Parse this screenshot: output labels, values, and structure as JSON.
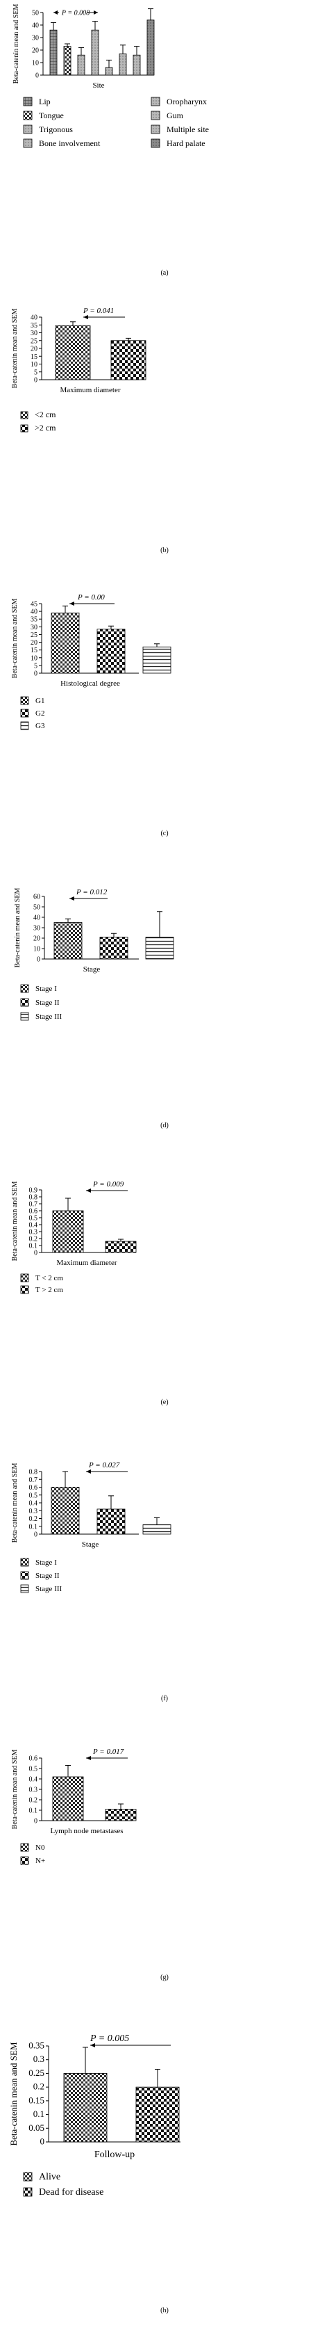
{
  "chart_data": [
    {
      "type": "bar",
      "panel_label": "(a)",
      "ylabel": "Beta-catenin mean and SEM",
      "xlabel": "Site",
      "ylim": [
        0,
        50
      ],
      "yticks": [
        "0",
        "10",
        "20",
        "30",
        "40",
        "50"
      ],
      "categories": [
        "Lip",
        "Tongue",
        "Trigonous",
        "Bone involvement",
        "Oropharynx",
        "Gum",
        "Multiple site",
        "Hard palate"
      ],
      "values": [
        36,
        23,
        16,
        36,
        6,
        17,
        16,
        44
      ],
      "errors": [
        6,
        2,
        6,
        7,
        6,
        7,
        7,
        9
      ],
      "pattern_names": [
        "grid-dense",
        "checker-fine",
        "gray-light",
        "gray-light",
        "gray-light",
        "gray-light",
        "gray-light",
        "gray-medium"
      ],
      "p_text": "P = 0.008"
    },
    {
      "type": "bar",
      "panel_label": "(b)",
      "ylabel": "Beta-catenin mean and SEM",
      "xlabel": "Maximum diameter",
      "ylim": [
        0,
        40
      ],
      "yticks": [
        "0",
        "5",
        "10",
        "15",
        "20",
        "25",
        "30",
        "35",
        "40"
      ],
      "categories": [
        "<2 cm",
        ">2 cm"
      ],
      "values": [
        34.5,
        25
      ],
      "errors": [
        2.5,
        1.5
      ],
      "pattern_names": [
        "checker-fine",
        "checker-coarse"
      ],
      "p_text": "P = 0.041"
    },
    {
      "type": "bar",
      "panel_label": "(c)",
      "ylabel": "Beta-catenin mean and SEM",
      "xlabel": "Histological degree",
      "ylim": [
        0,
        45
      ],
      "yticks": [
        "0",
        "5",
        "10",
        "15",
        "20",
        "25",
        "30",
        "35",
        "40",
        "45"
      ],
      "categories": [
        "G1",
        "G2",
        "G3"
      ],
      "values": [
        39,
        28.5,
        17
      ],
      "errors": [
        4.5,
        2,
        2
      ],
      "pattern_names": [
        "checker-fine",
        "checker-coarse",
        "horizontal-lines"
      ],
      "p_text": "P = 0.00"
    },
    {
      "type": "bar",
      "panel_label": "(d)",
      "ylabel": "Beta-catenin mean and SEM",
      "xlabel": "Stage",
      "ylim": [
        0,
        60
      ],
      "yticks": [
        "0",
        "10",
        "20",
        "30",
        "40",
        "50",
        "60"
      ],
      "categories": [
        "Stage I",
        "Stage II",
        "Stage III"
      ],
      "values": [
        35,
        21,
        21
      ],
      "errors": [
        3.5,
        3.5,
        24.5
      ],
      "pattern_names": [
        "checker-fine",
        "checker-coarse",
        "horizontal-lines"
      ],
      "p_text": "P = 0.012"
    },
    {
      "type": "bar",
      "panel_label": "(e)",
      "ylabel": "Beta-catenin mean and SEM",
      "xlabel": "Maximum diameter",
      "ylim": [
        0,
        0.9
      ],
      "yticks": [
        "0",
        "0.1",
        "0.2",
        "0.3",
        "0.4",
        "0.5",
        "0.6",
        "0.7",
        "0.8",
        "0.9"
      ],
      "categories": [
        "T < 2 cm",
        "T > 2 cm"
      ],
      "values": [
        0.6,
        0.16
      ],
      "errors": [
        0.18,
        0.03
      ],
      "pattern_names": [
        "checker-fine",
        "checker-coarse"
      ],
      "p_text": "P = 0.009"
    },
    {
      "type": "bar",
      "panel_label": "(f)",
      "ylabel": "Beta-catenin mean and SEM",
      "xlabel": "Stage",
      "ylim": [
        0,
        0.8
      ],
      "yticks": [
        "0",
        "0.1",
        "0.2",
        "0.3",
        "0.4",
        "0.5",
        "0.6",
        "0.7",
        "0.8"
      ],
      "categories": [
        "Stage I",
        "Stage II",
        "Stage III"
      ],
      "values": [
        0.6,
        0.32,
        0.12
      ],
      "errors": [
        0.2,
        0.17,
        0.09
      ],
      "pattern_names": [
        "checker-fine",
        "checker-coarse",
        "horizontal-lines"
      ],
      "p_text": "P = 0.027"
    },
    {
      "type": "bar",
      "panel_label": "(g)",
      "ylabel": "Beta-catenin mean and SEM",
      "xlabel": "Lymph node metastases",
      "ylim": [
        0,
        0.6
      ],
      "yticks": [
        "0",
        "0.1",
        "0.2",
        "0.3",
        "0.4",
        "0.5",
        "0.6"
      ],
      "categories": [
        "N0",
        "N+"
      ],
      "values": [
        0.42,
        0.11
      ],
      "errors": [
        0.11,
        0.05
      ],
      "pattern_names": [
        "checker-fine",
        "checker-coarse"
      ],
      "p_text": "P = 0.017"
    },
    {
      "type": "bar",
      "panel_label": "(h)",
      "ylabel": "Beta-catenin mean and SEM",
      "xlabel": "Follow-up",
      "ylim": [
        0,
        0.35
      ],
      "yticks": [
        "0",
        "0.05",
        "0.1",
        "0.15",
        "0.2",
        "0.25",
        "0.3",
        "0.35"
      ],
      "categories": [
        "Alive",
        "Dead for disease"
      ],
      "values": [
        0.25,
        0.2
      ],
      "errors": [
        0.095,
        0.065
      ],
      "pattern_names": [
        "checker-fine",
        "checker-coarse"
      ],
      "p_text": "P = 0.005"
    }
  ]
}
